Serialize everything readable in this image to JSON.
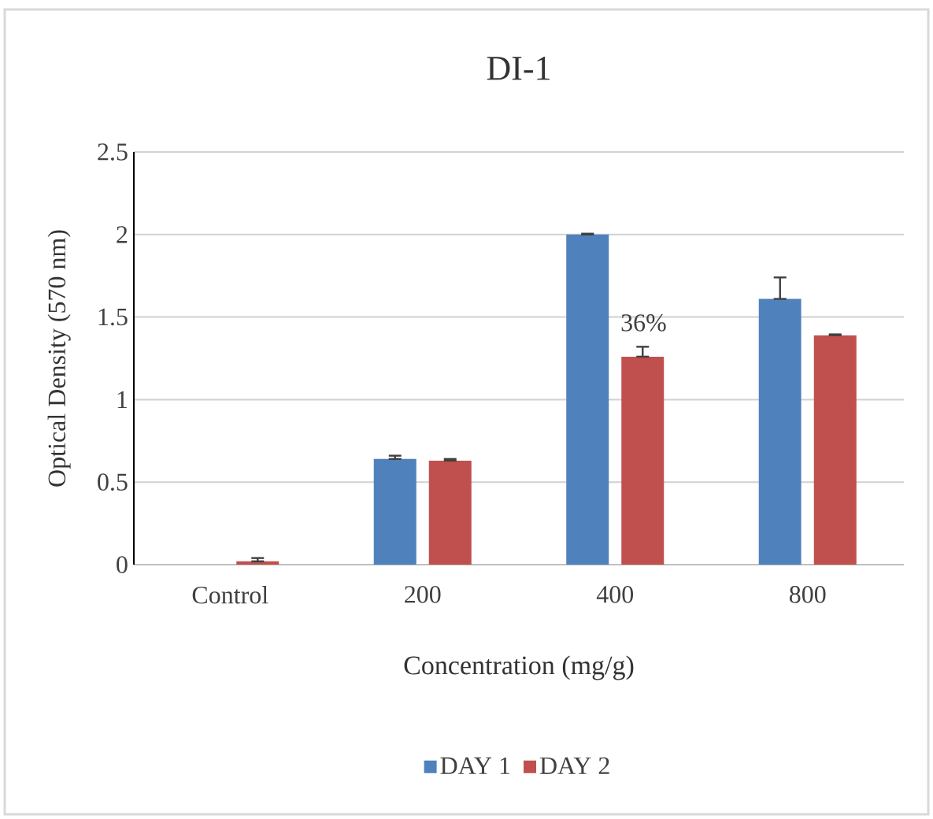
{
  "chart_data": {
    "type": "bar",
    "title": "DI-1",
    "xlabel": "Concentration (mg/g)",
    "ylabel": "Optical Density (570 nm)",
    "categories": [
      "Control",
      "200",
      "400",
      "800"
    ],
    "series": [
      {
        "name": "DAY 1",
        "color": "#4f81bd",
        "values": [
          null,
          0.64,
          2.0,
          1.61
        ],
        "errors": [
          null,
          [
            0.64,
            0.66
          ],
          [
            2.0,
            2.005
          ],
          [
            1.61,
            1.74
          ]
        ]
      },
      {
        "name": "DAY 2",
        "color": "#c0504d",
        "values": [
          0.02,
          0.63,
          1.26,
          1.39
        ],
        "errors": [
          [
            0.02,
            0.04
          ],
          [
            0.63,
            0.64
          ],
          [
            1.26,
            1.32
          ],
          [
            1.39,
            1.395
          ]
        ]
      }
    ],
    "annotations": [
      "36%"
    ],
    "ylim": [
      0,
      2.5
    ],
    "yticks": [
      0,
      0.5,
      1,
      1.5,
      2,
      2.5
    ],
    "grid": "y",
    "legend": "bottom"
  }
}
